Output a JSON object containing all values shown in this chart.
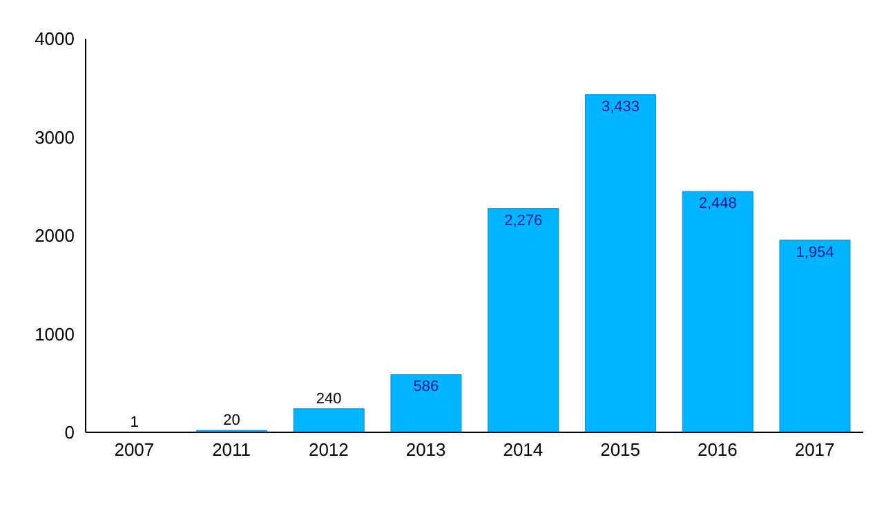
{
  "chart_data": {
    "type": "bar",
    "categories": [
      "2007",
      "2011",
      "2012",
      "2013",
      "2014",
      "2015",
      "2016",
      "2017"
    ],
    "values": [
      1,
      20,
      240,
      586,
      2276,
      3433,
      2448,
      1954
    ],
    "value_labels": [
      "1",
      "20",
      "240",
      "586",
      "2,276",
      "3,433",
      "2,448",
      "1,954"
    ],
    "color": "#00b4ff",
    "ylim": [
      0,
      4000
    ],
    "yticks": [
      0,
      1000,
      2000,
      3000,
      4000
    ],
    "grid": false,
    "legend": false
  }
}
